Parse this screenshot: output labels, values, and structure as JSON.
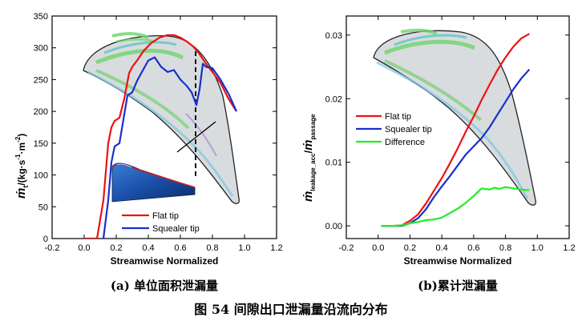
{
  "figure_caption": "图 54 间隙出口泄漏量沿流向分布",
  "chart_data": [
    {
      "type": "line",
      "caption": "(a)  单位面积泄漏量",
      "xlabel": "Streamwise Normalized",
      "ylabel_dot": "ṁ",
      "ylabel_sub": "t",
      "ylabel_unit": "/(kg·s",
      "ylabel_exp1": "-1",
      "ylabel_mid": "·m",
      "ylabel_exp2": "-2",
      "ylabel_end": ")",
      "xlim": [
        -0.2,
        1.2
      ],
      "ylim": [
        0,
        350
      ],
      "xticks": [
        "-0.2",
        "0.0",
        "0.2",
        "0.4",
        "0.6",
        "0.8",
        "1.0",
        "1.2"
      ],
      "yticks": [
        "0",
        "50",
        "100",
        "150",
        "200",
        "250",
        "300",
        "350"
      ],
      "legend_position": "bottom-center",
      "series": [
        {
          "name": "Flat tip",
          "color": "#ee1111",
          "x": [
            0.0,
            0.08,
            0.12,
            0.15,
            0.17,
            0.19,
            0.22,
            0.25,
            0.28,
            0.3,
            0.33,
            0.37,
            0.42,
            0.47,
            0.52,
            0.56,
            0.6,
            0.64,
            0.68,
            0.72,
            0.76,
            0.8,
            0.85,
            0.9,
            0.95
          ],
          "y": [
            0,
            0,
            60,
            150,
            175,
            185,
            190,
            220,
            260,
            270,
            280,
            295,
            308,
            316,
            320,
            320,
            316,
            310,
            302,
            290,
            275,
            262,
            245,
            220,
            200
          ]
        },
        {
          "name": "Squealer tip",
          "color": "#1a2fcc",
          "x": [
            0.12,
            0.15,
            0.17,
            0.19,
            0.22,
            0.24,
            0.27,
            0.3,
            0.33,
            0.36,
            0.4,
            0.44,
            0.48,
            0.52,
            0.56,
            0.6,
            0.64,
            0.67,
            0.7,
            0.72,
            0.74,
            0.76,
            0.8,
            0.85,
            0.9,
            0.95
          ],
          "y": [
            0,
            60,
            120,
            145,
            150,
            180,
            225,
            230,
            248,
            262,
            280,
            285,
            270,
            262,
            265,
            250,
            240,
            230,
            210,
            235,
            275,
            270,
            268,
            250,
            228,
            200
          ]
        }
      ],
      "annotations": [
        "inset blade tip contour",
        "inset squealer tip 3D sketch",
        "dashed section line near x = 0.73"
      ]
    },
    {
      "type": "line",
      "caption": "(b)累计泄漏量",
      "xlabel": "Streamwise Normalized",
      "ylabel_dot": "ṁ",
      "ylabel_sub1": "leakage_acc",
      "ylabel_slash": "/",
      "ylabel_dot2": "ṁ",
      "ylabel_sub2": "passage",
      "xlim": [
        -0.2,
        1.2
      ],
      "ylim": [
        -0.002,
        0.033
      ],
      "xticks": [
        "-0.2",
        "0.0",
        "0.2",
        "0.4",
        "0.6",
        "0.8",
        "1.0",
        "1.2"
      ],
      "yticks": [
        "0.00",
        "0.01",
        "0.02",
        "0.03"
      ],
      "legend_position": "top-left",
      "series": [
        {
          "name": "Flat tip",
          "color": "#ee1111",
          "x": [
            0.02,
            0.1,
            0.15,
            0.2,
            0.25,
            0.3,
            0.35,
            0.4,
            0.45,
            0.5,
            0.55,
            0.6,
            0.65,
            0.7,
            0.75,
            0.8,
            0.85,
            0.9,
            0.95
          ],
          "y": [
            0.0,
            0.0,
            0.0001,
            0.0008,
            0.0018,
            0.0035,
            0.0055,
            0.0075,
            0.0098,
            0.0122,
            0.0148,
            0.0172,
            0.0198,
            0.0222,
            0.0245,
            0.0265,
            0.0282,
            0.0295,
            0.0302
          ]
        },
        {
          "name": "Squealer tip",
          "color": "#1a2fcc",
          "x": [
            0.02,
            0.1,
            0.15,
            0.2,
            0.25,
            0.3,
            0.35,
            0.4,
            0.45,
            0.5,
            0.55,
            0.6,
            0.65,
            0.7,
            0.75,
            0.8,
            0.85,
            0.9,
            0.95
          ],
          "y": [
            0.0,
            0.0,
            0.0,
            0.0004,
            0.0012,
            0.0026,
            0.0045,
            0.0062,
            0.0078,
            0.0095,
            0.0112,
            0.0125,
            0.0138,
            0.0155,
            0.0175,
            0.0195,
            0.0215,
            0.0232,
            0.0246
          ]
        },
        {
          "name": "Difference",
          "color": "#22ee22",
          "x": [
            0.02,
            0.1,
            0.15,
            0.2,
            0.25,
            0.3,
            0.35,
            0.4,
            0.45,
            0.5,
            0.55,
            0.6,
            0.65,
            0.7,
            0.73,
            0.76,
            0.8,
            0.85,
            0.9,
            0.95
          ],
          "y": [
            0.0,
            0.0,
            0.0001,
            0.0004,
            0.0006,
            0.0009,
            0.001,
            0.0013,
            0.002,
            0.0027,
            0.0036,
            0.0047,
            0.0059,
            0.0057,
            0.006,
            0.0058,
            0.0061,
            0.0059,
            0.0057,
            0.0056
          ]
        }
      ],
      "annotations": [
        "inset blade tip contour"
      ]
    }
  ]
}
